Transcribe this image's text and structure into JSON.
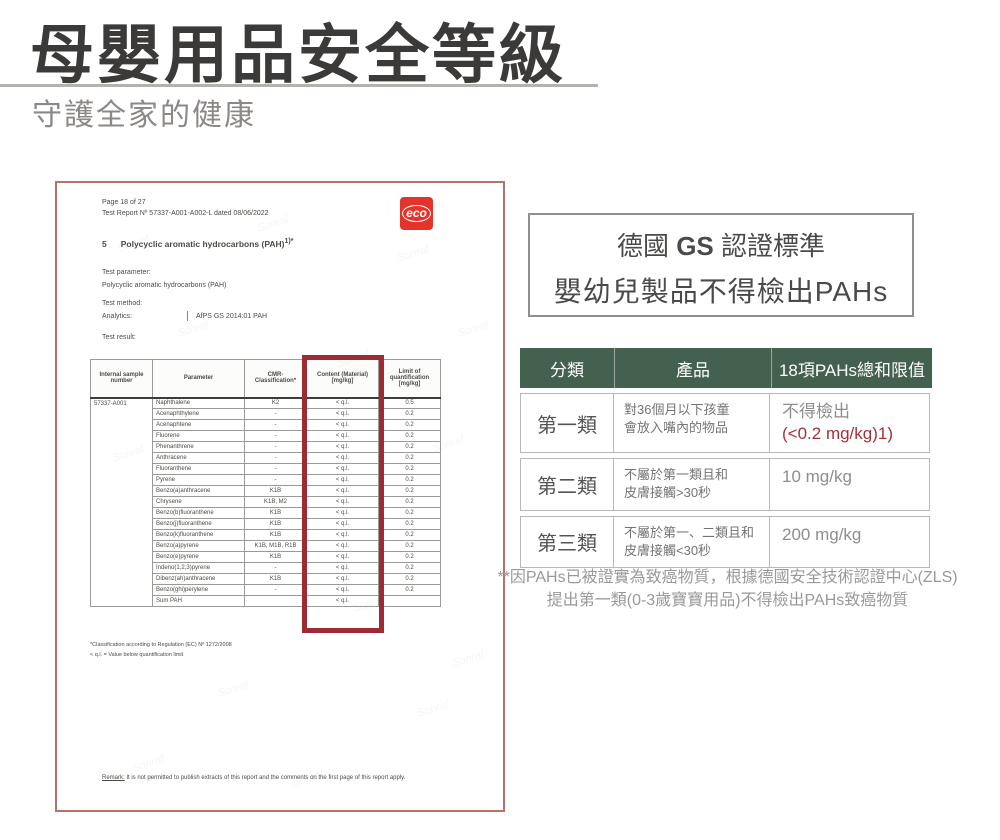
{
  "page": {
    "title": "母嬰用品安全等級",
    "subtitle": "守護全家的健康"
  },
  "report": {
    "page_info": "Page 18 of 27",
    "report_no": "Test Report Nº 57337-A001-A002-L dated 08/06/2022",
    "logo_text": "eco",
    "section_no": "5",
    "section_title": "Polycyclic aromatic hydrocarbons (PAH)",
    "section_sup": "1)*",
    "test_parameter_label": "Test parameter:",
    "test_parameter_value": "Polycyclic aromatic hydrocarbons (PAH)",
    "test_method_label": "Test method:",
    "analytics_label": "Analytics:",
    "analytics_value": "AfPS GS 2014:01 PAH",
    "test_result_label": "Test result:",
    "watermark": "Sonraf",
    "table": {
      "headers": [
        "Internal sample number",
        "Parameter",
        "CMR-Classification*",
        "Content (Material) [mg/kg]",
        "Limit of quantification [mg/kg]"
      ],
      "sample_number": "57337-A001",
      "rows": [
        {
          "parameter": "Naphthalene",
          "cmr": "K2",
          "content": "< q.l.",
          "limit": "0.5"
        },
        {
          "parameter": "Acenaphthylene",
          "cmr": "-",
          "content": "< q.l.",
          "limit": "0.2"
        },
        {
          "parameter": "Acenaphtene",
          "cmr": "-",
          "content": "< q.l.",
          "limit": "0.2"
        },
        {
          "parameter": "Fluorene",
          "cmr": "-",
          "content": "< q.l.",
          "limit": "0.2"
        },
        {
          "parameter": "Phenanthrene",
          "cmr": "-",
          "content": "< q.l.",
          "limit": "0.2"
        },
        {
          "parameter": "Anthracene",
          "cmr": "-",
          "content": "< q.l.",
          "limit": "0.2"
        },
        {
          "parameter": "Fluoranthene",
          "cmr": "-",
          "content": "< q.l.",
          "limit": "0.2"
        },
        {
          "parameter": "Pyrene",
          "cmr": "-",
          "content": "< q.l.",
          "limit": "0.2"
        },
        {
          "parameter": "Benzo(a)anthracene",
          "cmr": "K1B",
          "content": "< q.l.",
          "limit": "0.2"
        },
        {
          "parameter": "Chrysene",
          "cmr": "K1B, M2",
          "content": "< q.l.",
          "limit": "0.2"
        },
        {
          "parameter": "Benzo(b)fluoranthene",
          "cmr": "K1B",
          "content": "< q.l.",
          "limit": "0.2"
        },
        {
          "parameter": "Benzo(j)fluoranthene",
          "cmr": "K1B",
          "content": "< q.l.",
          "limit": "0.2"
        },
        {
          "parameter": "Benzo(k)fluoranthene",
          "cmr": "K1B",
          "content": "< q.l.",
          "limit": "0.2"
        },
        {
          "parameter": "Benzo(a)pyrene",
          "cmr": "K1B, M1B, R1B",
          "content": "< q.l.",
          "limit": "0.2"
        },
        {
          "parameter": "Benzo(e)pyrene",
          "cmr": "K1B",
          "content": "< q.l.",
          "limit": "0.2"
        },
        {
          "parameter": "Indeno(1,2,3)pyrene",
          "cmr": "-",
          "content": "< q.l.",
          "limit": "0.2"
        },
        {
          "parameter": "Dibenz(ah)anthracene",
          "cmr": "K1B",
          "content": "< q.l.",
          "limit": "0.2"
        },
        {
          "parameter": "Benzo(ghi)perylene",
          "cmr": "-",
          "content": "< q.l.",
          "limit": "0.2"
        },
        {
          "parameter": "Sum PAH",
          "cmr": "",
          "content": "< q.l.",
          "limit": ""
        }
      ]
    },
    "footnotes": [
      "*Classification according to Regulation (EC) Nº 1272/2008",
      "< q.l. = Value below quantification limit"
    ],
    "remark_label": "Remark:",
    "remark_text": " It is not permitted to publish extracts of this report and the comments on the first page of this report apply."
  },
  "gs_box": {
    "line1_pre": "德國 ",
    "line1_bold": "GS",
    "line1_post": " 認證標準",
    "line2": "嬰幼兒製品不得檢出PAHs"
  },
  "category_table": {
    "headers": [
      "分類",
      "產品",
      "18項PAHs總和限值"
    ],
    "rows": [
      {
        "category": "第一類",
        "product": [
          "對36個月以下孩童",
          "會放入嘴內的物品"
        ],
        "limit": "不得檢出",
        "limit_red": "(<0.2 mg/kg)1)"
      },
      {
        "category": "第二類",
        "product": [
          "不屬於第一類且和",
          "皮膚接觸>30秒"
        ],
        "limit": "10 mg/kg"
      },
      {
        "category": "第三類",
        "product": [
          "不屬於第一、二類且和",
          "皮膚接觸<30秒"
        ],
        "limit": "200 mg/kg"
      }
    ]
  },
  "note": {
    "line1": "**因PAHs已被證實為致癌物質，根據德國安全技術認證中心(ZLS)",
    "line2": "提出第一類(0-3歲寶寶用品)不得檢出PAHs致癌物質"
  },
  "colors": {
    "header_green": "#44604f",
    "alert_red": "#a03339",
    "highlight_red": "#9c2b33",
    "eco_red": "#e5332c",
    "doc_border": "#b5736b"
  }
}
